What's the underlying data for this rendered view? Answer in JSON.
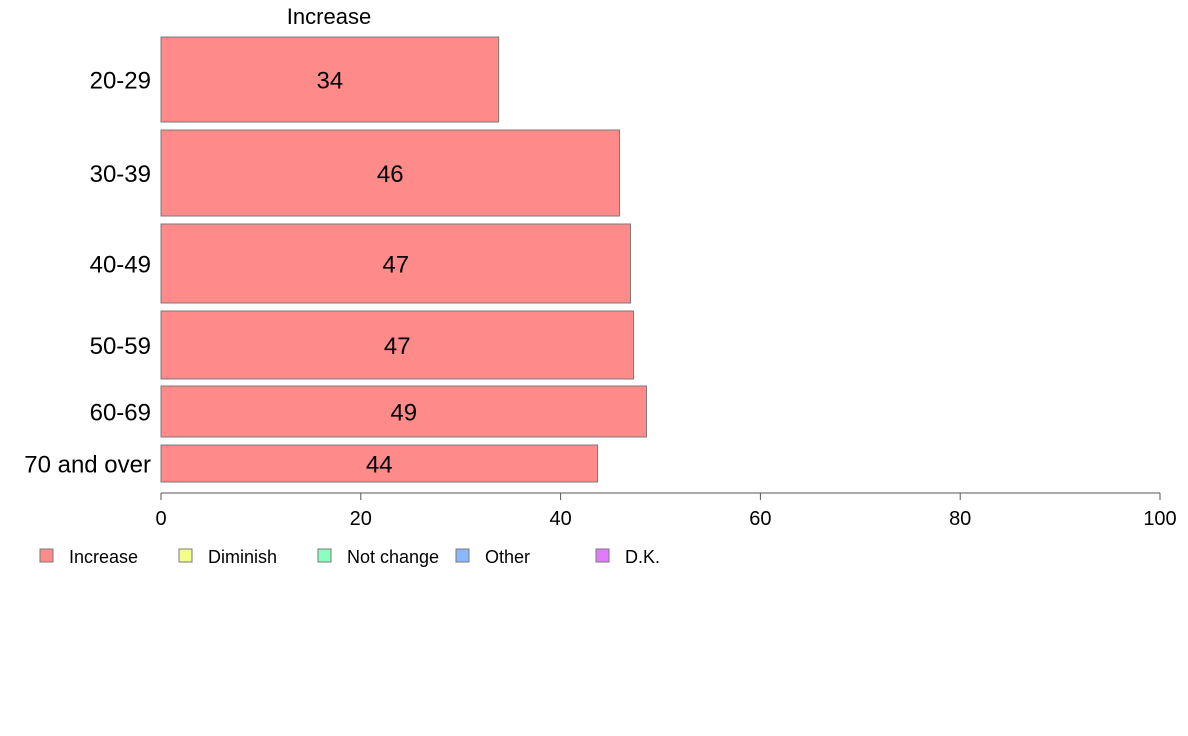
{
  "chart_data": {
    "type": "bar",
    "orientation": "horizontal",
    "title": "Increase",
    "categories": [
      "20-29",
      "30-39",
      "40-49",
      "50-59",
      "60-69",
      "70 and over"
    ],
    "values": [
      33.8,
      45.9,
      47.0,
      47.3,
      48.6,
      43.7
    ],
    "data_labels": [
      "34",
      "46",
      "47",
      "47",
      "49",
      "44"
    ],
    "series": [
      {
        "name": "Increase",
        "color": "#ff8a8a",
        "values": [
          33.8,
          45.9,
          47.0,
          47.3,
          48.6,
          43.7
        ]
      }
    ],
    "xlim": [
      0,
      100
    ],
    "x_ticks": [
      0,
      20,
      40,
      60,
      80,
      100
    ],
    "x_tick_labels": [
      "0",
      "20",
      "40",
      "60",
      "80",
      "100"
    ],
    "grid": false,
    "legend_position": "bottom-left",
    "legend": [
      {
        "label": "Increase",
        "color": "#ff8a8a"
      },
      {
        "label": "Diminish",
        "color": "#f2ff8a"
      },
      {
        "label": "Not change",
        "color": "#8affc0"
      },
      {
        "label": "Other",
        "color": "#8ab8ff"
      },
      {
        "label": "D.K.",
        "color": "#e27aff"
      }
    ]
  }
}
